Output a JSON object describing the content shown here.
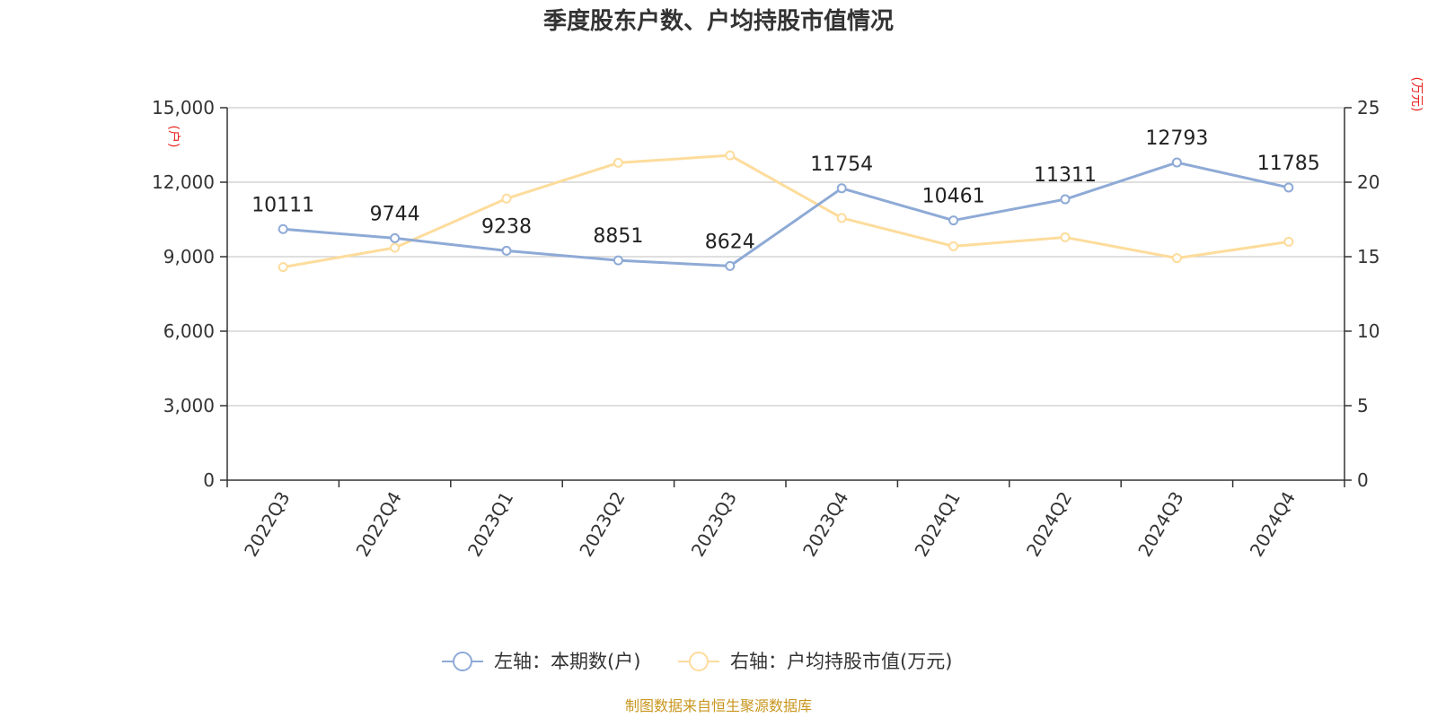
{
  "title": "季度股东户数、户均持股市值情况",
  "source": "制图数据来自恒生聚源数据库",
  "colors": {
    "series_left": "#8eaad6",
    "series_right": "#fddc9c",
    "unit": "#e8241f",
    "source": "#c8961f",
    "grid": "#cccccc",
    "axis": "#333333"
  },
  "left_axis": {
    "unit": "(户)",
    "ticks": [
      "0",
      "3,000",
      "6,000",
      "9,000",
      "12,000",
      "15,000"
    ]
  },
  "right_axis": {
    "unit": "(万元)",
    "ticks": [
      "0",
      "5",
      "10",
      "15",
      "20",
      "25"
    ]
  },
  "chart_data": {
    "type": "line",
    "categories": [
      "2022Q3",
      "2022Q4",
      "2023Q1",
      "2023Q2",
      "2023Q3",
      "2023Q4",
      "2024Q1",
      "2024Q2",
      "2024Q3",
      "2024Q4"
    ],
    "series": [
      {
        "name": "左轴：本期数(户)",
        "axis": "left",
        "values": [
          10111,
          9744,
          9238,
          8851,
          8624,
          11754,
          10461,
          11311,
          12793,
          11785
        ],
        "data_labels": [
          "10111",
          "9744",
          "9238",
          "8851",
          "8624",
          "11754",
          "10461",
          "11311",
          "12793",
          "11785"
        ]
      },
      {
        "name": "右轴：户均持股市值(万元)",
        "axis": "right",
        "values": [
          14.3,
          15.6,
          18.9,
          21.3,
          21.8,
          17.6,
          15.7,
          16.3,
          14.9,
          16.0
        ]
      }
    ],
    "ylim_left": [
      0,
      15000
    ],
    "ylim_right": [
      0,
      25
    ],
    "grid": true,
    "legend": "bottom-center"
  }
}
